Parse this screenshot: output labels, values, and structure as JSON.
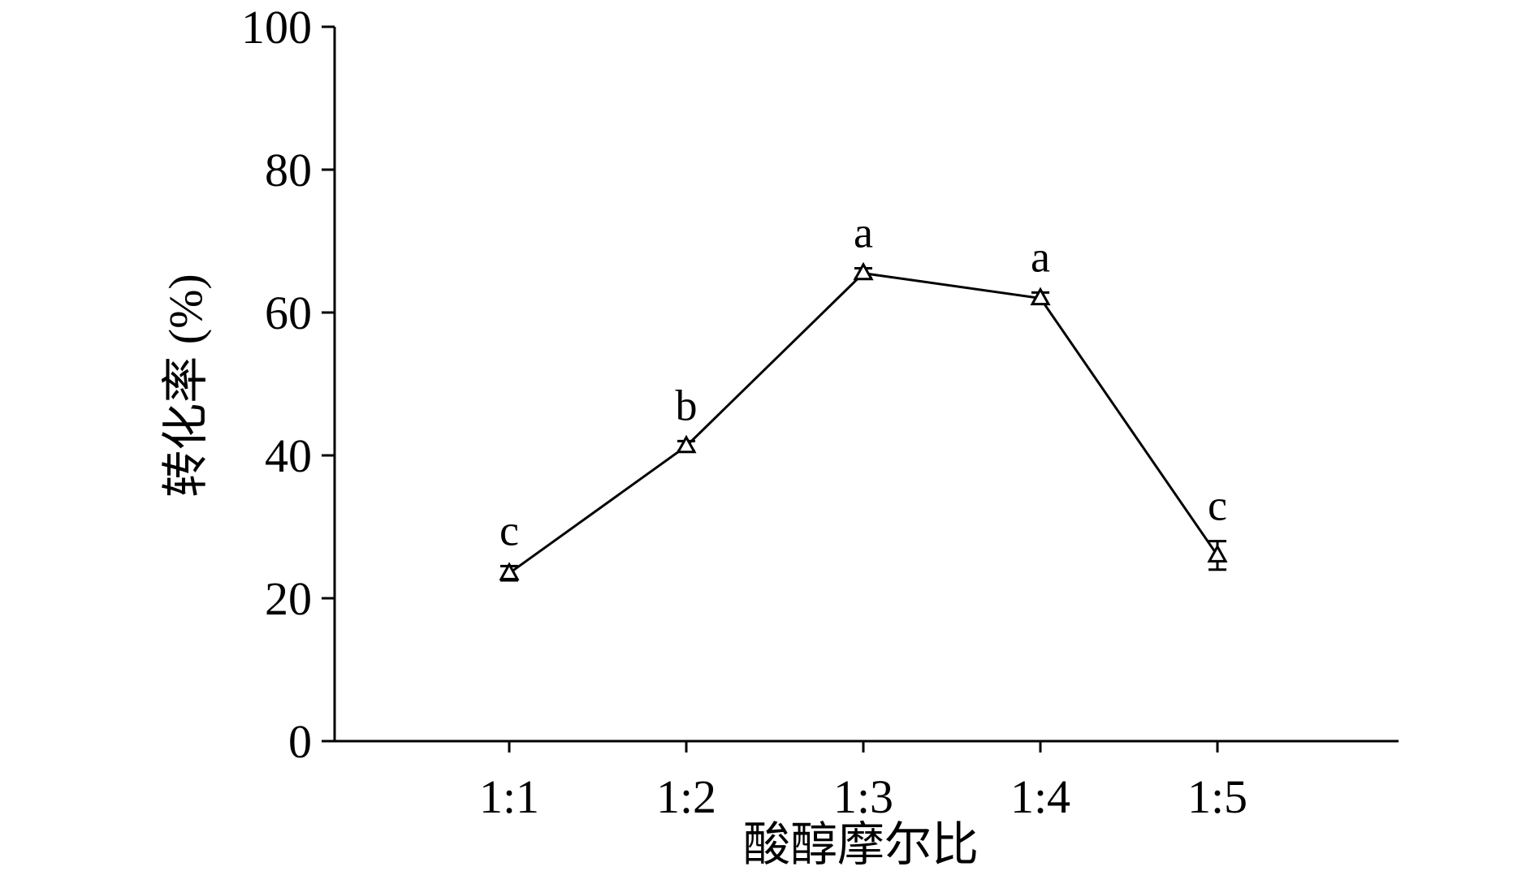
{
  "chart_data": {
    "type": "line",
    "xlabel": "酸醇摩尔比",
    "ylabel": "转化率 (%)",
    "categories": [
      "1:1",
      "1:2",
      "1:3",
      "1:4",
      "1:5"
    ],
    "ylim": [
      0,
      100
    ],
    "yticks": [
      0,
      20,
      40,
      60,
      80,
      100
    ],
    "grid": false,
    "marker": "open-triangle",
    "series": [
      {
        "values": [
          23.5,
          41.3,
          65.5,
          62.0,
          26.0
        ],
        "errors": [
          1.0,
          0.7,
          0.7,
          0.8,
          2.0
        ],
        "significance_labels": [
          "c",
          "b",
          "a",
          "a",
          "c"
        ]
      }
    ],
    "colors": {
      "line": "#000000"
    }
  }
}
